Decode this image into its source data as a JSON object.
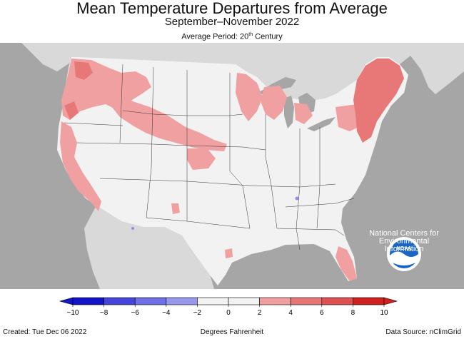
{
  "header": {
    "title": "Mean Temperature Departures from Average",
    "subtitle": "September–November 2022",
    "period_prefix": "Average Period: 20",
    "period_sup": "th",
    "period_suffix": " Century"
  },
  "map": {
    "colors": {
      "background_outside": "#a6a6a6",
      "land_outside": "#d9d9d9",
      "us_neutral": "#f2f2f2",
      "lakes": "#a6a6a6",
      "warm_0_2": "#f2f2f2",
      "warm_2_4": "#f0a0a0",
      "warm_4_6": "#e87878",
      "cool_spot": "#8f8fe8",
      "boundary": "#333333"
    },
    "noaa_logo": {
      "label": "NOAA",
      "org_line1": "National Centers for",
      "org_line2": "Environmental",
      "org_line3": "Information"
    }
  },
  "legend": {
    "ticks": [
      "−10",
      "−8",
      "−6",
      "−4",
      "−2",
      "0",
      "2",
      "4",
      "6",
      "8",
      "10"
    ],
    "colors": [
      "#1414c8",
      "#4646dc",
      "#6e6ee6",
      "#9898ee",
      "#f2f2f2",
      "#f2f2f2",
      "#f0a0a0",
      "#e87878",
      "#e05050",
      "#d02020"
    ]
  },
  "footer": {
    "created": "Created: Tue Dec 06 2022",
    "units": "Degrees Fahrenheit",
    "source": "Data Source: nClimGrid"
  }
}
